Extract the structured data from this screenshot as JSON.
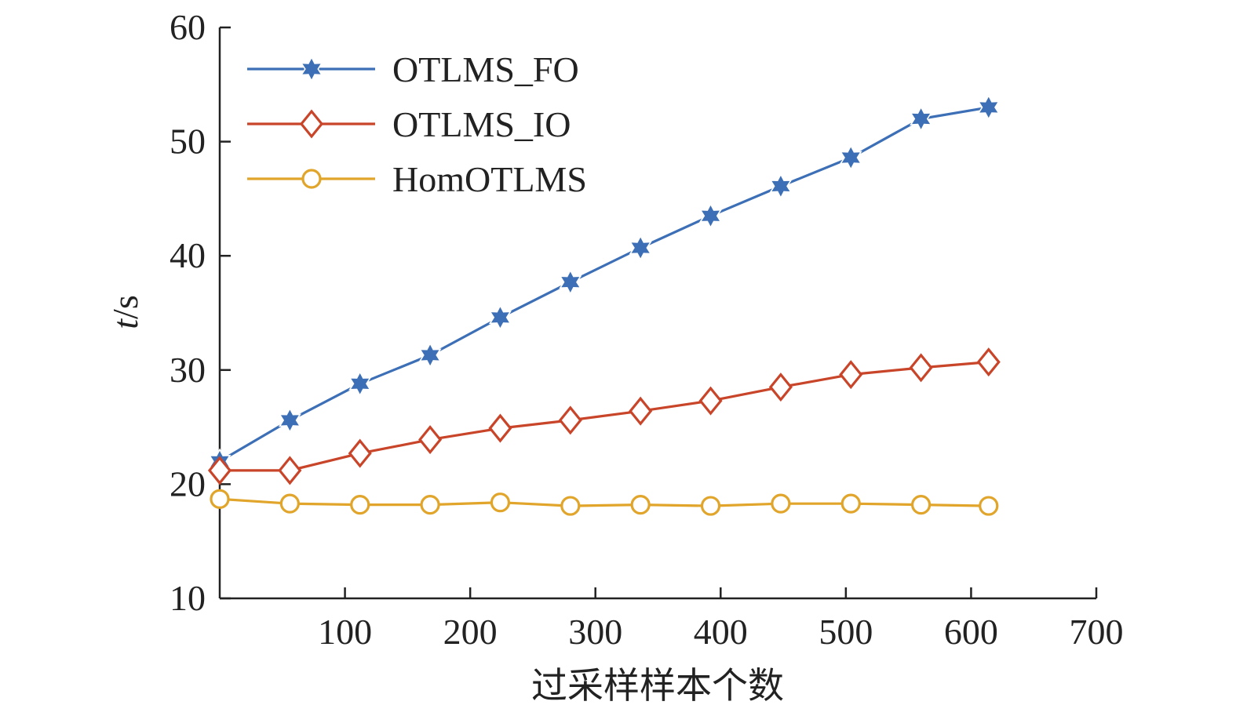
{
  "chart_data": {
    "type": "line",
    "title": "",
    "xlabel": "过采样样本个数",
    "ylabel_italic": "t",
    "ylabel_rest": "/s",
    "xlim": [
      0,
      700
    ],
    "ylim": [
      10,
      60
    ],
    "xticks": [
      100,
      200,
      300,
      400,
      500,
      600,
      700
    ],
    "yticks": [
      10,
      20,
      30,
      40,
      50,
      60
    ],
    "grid": false,
    "legend_position": "top-left",
    "x": [
      0,
      56,
      112,
      168,
      224,
      280,
      336,
      392,
      448,
      504,
      560,
      614
    ],
    "series": [
      {
        "name": "OTLMS_FO",
        "color": "#3c6fb6",
        "marker": "star",
        "values": [
          22.0,
          25.6,
          28.8,
          31.3,
          34.6,
          37.7,
          40.7,
          43.5,
          46.1,
          48.6,
          52.0,
          53.0
        ]
      },
      {
        "name": "OTLMS_IO",
        "color": "#c9452a",
        "marker": "diamond",
        "values": [
          21.2,
          21.2,
          22.7,
          23.9,
          24.9,
          25.6,
          26.4,
          27.3,
          28.5,
          29.6,
          30.2,
          30.7
        ]
      },
      {
        "name": "HomOTLMS",
        "color": "#e0a52a",
        "marker": "circle",
        "values": [
          18.7,
          18.3,
          18.2,
          18.2,
          18.4,
          18.1,
          18.2,
          18.1,
          18.3,
          18.3,
          18.2,
          18.1
        ]
      }
    ]
  }
}
